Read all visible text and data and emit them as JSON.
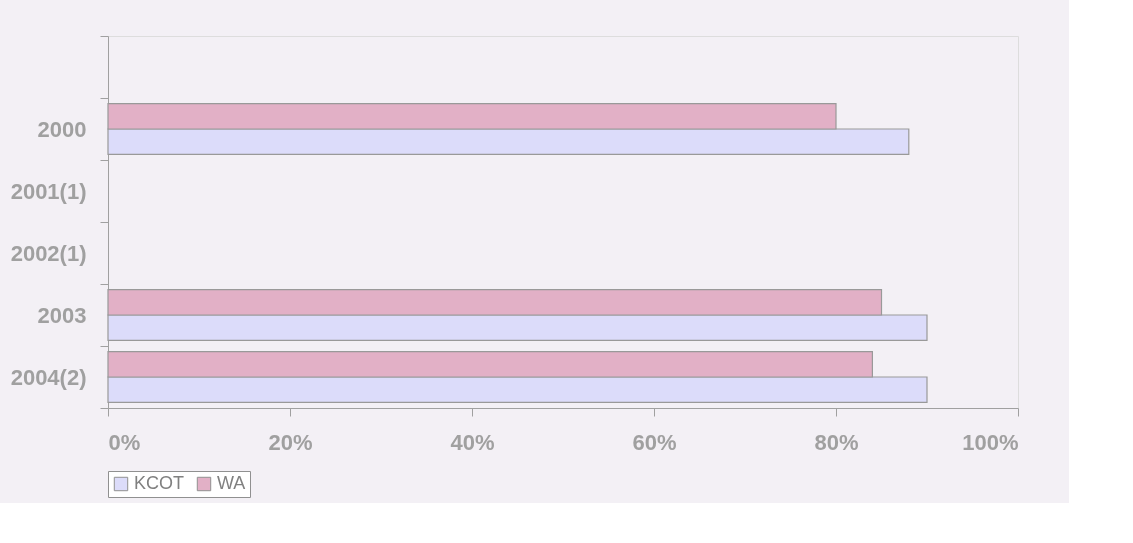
{
  "chart_data": {
    "type": "bar",
    "orientation": "horizontal",
    "categories": [
      null,
      "2000",
      "2001(1)",
      "2002(1)",
      "2003",
      "2004(2)"
    ],
    "series": [
      {
        "name": "KCOT",
        "color": "#dcdcfa",
        "values": [
          null,
          88,
          null,
          null,
          90,
          90
        ]
      },
      {
        "name": "WA",
        "color": "#e2b0c6",
        "values": [
          null,
          80,
          null,
          null,
          85,
          84
        ]
      }
    ],
    "xlim": [
      0,
      100
    ],
    "xticks": [
      {
        "value": 0,
        "label": "0%"
      },
      {
        "value": 20,
        "label": "20%"
      },
      {
        "value": 40,
        "label": "40%"
      },
      {
        "value": 60,
        "label": "60%"
      },
      {
        "value": 80,
        "label": "80%"
      },
      {
        "value": 100,
        "label": "100%"
      }
    ],
    "grid": false,
    "legend": "bottom"
  }
}
